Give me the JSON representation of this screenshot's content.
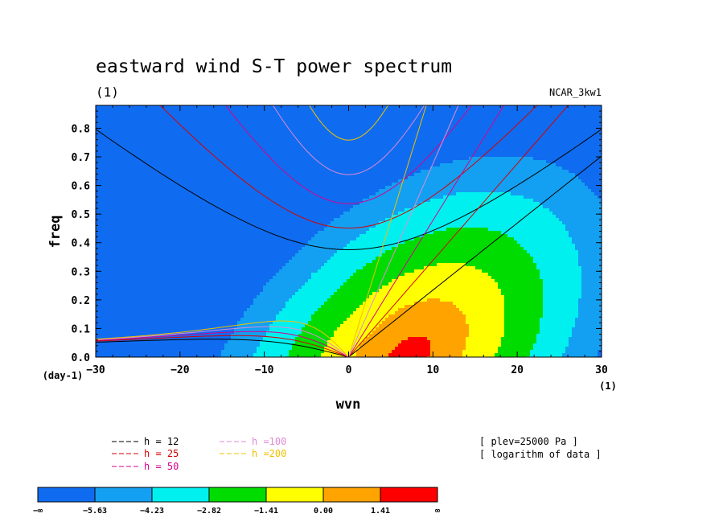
{
  "chart_data": {
    "type": "heatmap",
    "title": "eastward wind S-T power spectrum",
    "subtitle_left": "(1)",
    "subtitle_right": "NCAR_3kw1",
    "xlabel": "wvn",
    "ylabel": "freq",
    "x_unit": "(1)",
    "y_unit": "(day-1)",
    "xlim": [
      -30,
      30
    ],
    "ylim": [
      0,
      0.88
    ],
    "xticks": [
      -30,
      -20,
      -10,
      0,
      10,
      20,
      30
    ],
    "xtick_labels": [
      "−30",
      "−20",
      "−10",
      "0",
      "10",
      "20",
      "30"
    ],
    "yticks": [
      0,
      0.1,
      0.2,
      0.3,
      0.4,
      0.5,
      0.6,
      0.7,
      0.8
    ],
    "ytick_labels": [
      "0.0",
      "0.1",
      "0.2",
      "0.3",
      "0.4",
      "0.5",
      "0.6",
      "0.7",
      "0.8"
    ],
    "levels": [
      "−∞",
      "−5.63",
      "−4.23",
      "−2.82",
      "−1.41",
      "0.00",
      "1.41",
      "∞"
    ],
    "level_colors": [
      "#0f6cf0",
      "#13a0f2",
      "#00f0f0",
      "#00dc00",
      "#ffff00",
      "#ffa300",
      "#ff0000"
    ],
    "dispersion_curves": [
      {
        "label": "h = 12",
        "equivalent_depth_m": 12,
        "color": "#000000"
      },
      {
        "label": "h = 25",
        "equivalent_depth_m": 25,
        "color": "#d60000"
      },
      {
        "label": "h = 50",
        "equivalent_depth_m": 50,
        "color": "#d6008c"
      },
      {
        "label": "h =100",
        "equivalent_depth_m": 100,
        "color": "#e08ad6"
      },
      {
        "label": "h =200",
        "equivalent_depth_m": 200,
        "color": "#f0c000"
      }
    ],
    "annotations": [
      "[ plev=25000 Pa ]",
      "[ logarithm of data ]"
    ],
    "grid": false,
    "legend_position": "bottom"
  }
}
